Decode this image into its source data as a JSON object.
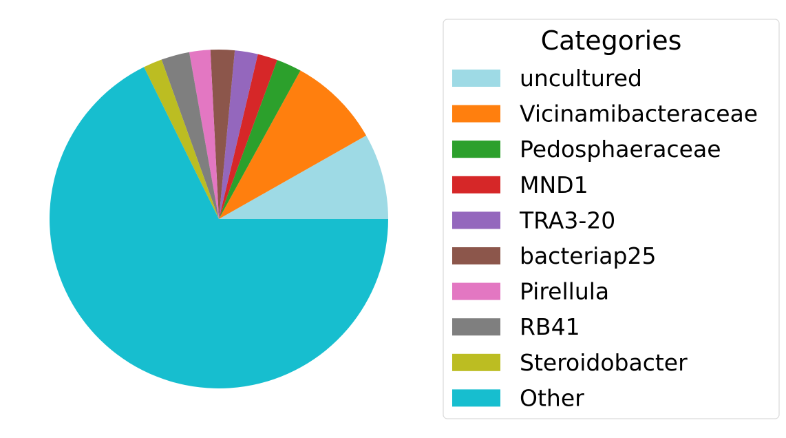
{
  "chart_data": {
    "type": "pie",
    "title": "",
    "start_angle_deg": 0,
    "direction": "counterclockwise",
    "slices": [
      {
        "label": "uncultured",
        "value": 8.2,
        "color": "#9edae5"
      },
      {
        "label": "Vicinamibacteraceae",
        "value": 8.8,
        "color": "#ff7f0e"
      },
      {
        "label": "Pedosphaeraceae",
        "value": 2.4,
        "color": "#2ca02c"
      },
      {
        "label": "MND1",
        "value": 1.9,
        "color": "#d62728"
      },
      {
        "label": "TRA3-20",
        "value": 2.2,
        "color": "#9467bd"
      },
      {
        "label": "bacteriap25",
        "value": 2.3,
        "color": "#8c564b"
      },
      {
        "label": "Pirellula",
        "value": 2.0,
        "color": "#e377c2"
      },
      {
        "label": "RB41",
        "value": 2.7,
        "color": "#7f7f7f"
      },
      {
        "label": "Steroidobacter",
        "value": 1.8,
        "color": "#bcbd22"
      },
      {
        "label": "Other",
        "value": 67.7,
        "color": "#17becf"
      }
    ],
    "legend": {
      "title": "Categories",
      "placement": "right"
    }
  }
}
